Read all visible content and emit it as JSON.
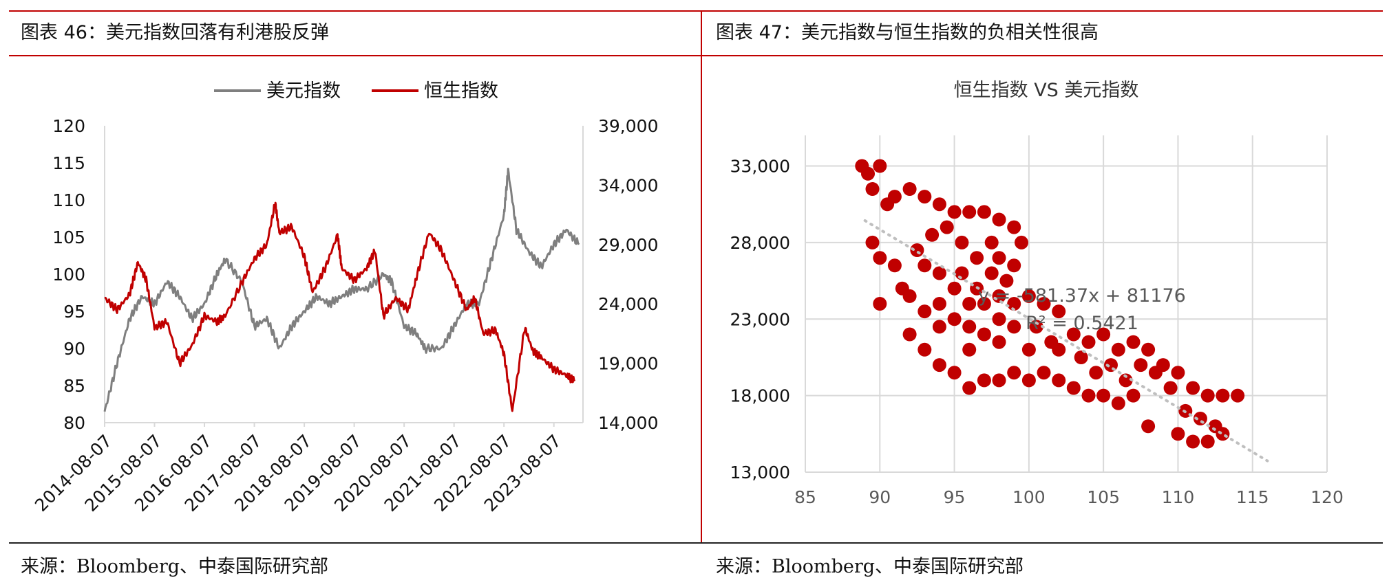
{
  "panels": {
    "left": {
      "title": "图表 46：美元指数回落有利港股反弹",
      "source": "来源：Bloomberg、中泰国际研究部"
    },
    "right": {
      "title": "图表 47：美元指数与恒生指数的负相关性很高",
      "source": "来源：Bloomberg、中泰国际研究部"
    }
  },
  "colors": {
    "usd": "#7f7f7f",
    "hsi": "#c00000",
    "rule_red": "#c00000",
    "trend": "#bfbfbf"
  },
  "chart_data": [
    {
      "type": "line",
      "legend_position": "top",
      "grid": false,
      "series": [
        {
          "name": "美元指数",
          "axis": "left",
          "x": [
            "2014-08",
            "2014-11",
            "2015-02",
            "2015-05",
            "2015-08",
            "2015-11",
            "2016-02",
            "2016-05",
            "2016-08",
            "2016-11",
            "2017-01",
            "2017-05",
            "2017-08",
            "2017-11",
            "2018-02",
            "2018-05",
            "2018-08",
            "2018-11",
            "2019-02",
            "2019-05",
            "2019-08",
            "2019-11",
            "2020-03",
            "2020-05",
            "2020-08",
            "2020-11",
            "2021-01",
            "2021-05",
            "2021-08",
            "2021-11",
            "2022-02",
            "2022-05",
            "2022-08",
            "2022-09",
            "2022-11",
            "2023-02",
            "2023-05",
            "2023-08",
            "2023-11",
            "2024-02"
          ],
          "values": [
            81.5,
            88,
            94,
            97,
            96,
            99,
            97,
            94,
            96,
            100,
            102,
            99,
            93,
            94,
            90,
            93,
            95,
            97,
            96,
            97,
            98,
            98,
            100,
            99,
            93,
            92,
            90,
            90,
            93,
            96,
            96,
            102,
            108,
            114,
            106,
            103,
            101,
            104,
            106,
            104
          ]
        },
        {
          "name": "恒生指数",
          "axis": "right",
          "x": [
            "2014-08",
            "2014-11",
            "2015-02",
            "2015-04",
            "2015-06",
            "2015-08",
            "2015-11",
            "2016-02",
            "2016-05",
            "2016-08",
            "2016-11",
            "2017-01",
            "2017-05",
            "2017-08",
            "2017-11",
            "2018-01",
            "2018-02",
            "2018-05",
            "2018-08",
            "2018-10",
            "2019-01",
            "2019-04",
            "2019-05",
            "2019-08",
            "2019-11",
            "2020-01",
            "2020-03",
            "2020-06",
            "2020-09",
            "2020-11",
            "2021-02",
            "2021-05",
            "2021-08",
            "2021-11",
            "2022-01",
            "2022-03",
            "2022-06",
            "2022-08",
            "2022-10",
            "2023-01",
            "2023-03",
            "2023-05",
            "2023-08",
            "2023-11",
            "2024-01"
          ],
          "values": [
            24500,
            23500,
            24800,
            27500,
            26000,
            22000,
            22500,
            19000,
            20500,
            23000,
            22500,
            23000,
            25800,
            27800,
            29000,
            32500,
            30000,
            30500,
            28000,
            25000,
            27000,
            29800,
            27000,
            26000,
            27000,
            28500,
            23000,
            24500,
            23500,
            26300,
            30000,
            28500,
            26000,
            23500,
            24500,
            21500,
            21800,
            19800,
            15000,
            22000,
            20000,
            19500,
            18500,
            18000,
            17500
          ]
        }
      ],
      "xticks": [
        "2014-08-07",
        "2015-08-07",
        "2016-08-07",
        "2017-08-07",
        "2018-08-07",
        "2019-08-07",
        "2020-08-07",
        "2021-08-07",
        "2022-08-07",
        "2023-08-07"
      ],
      "yticks_left": [
        "80",
        "85",
        "90",
        "95",
        "100",
        "105",
        "110",
        "115",
        "120"
      ],
      "yticks_right": [
        "14,000",
        "19,000",
        "24,000",
        "29,000",
        "34,000",
        "39,000"
      ],
      "ylim_left": [
        80,
        120
      ],
      "ylim_right": [
        14000,
        39000
      ]
    },
    {
      "type": "scatter",
      "title": "恒生指数 VS 美元指数",
      "grid": true,
      "xlim": [
        85,
        120
      ],
      "ylim": [
        13000,
        35000
      ],
      "xticks": [
        "85",
        "90",
        "95",
        "100",
        "105",
        "110",
        "115",
        "120"
      ],
      "yticks": [
        "13,000",
        "18,000",
        "23,000",
        "28,000",
        "33,000"
      ],
      "trendline": {
        "slope": -581.37,
        "intercept": 81176,
        "x_range": [
          89,
          116
        ]
      },
      "annotations": [
        "y = -581.37x + 81176",
        "R² = 0.5421"
      ],
      "points": [
        [
          88.8,
          33000
        ],
        [
          89.2,
          32500
        ],
        [
          90,
          33000
        ],
        [
          89.5,
          31500
        ],
        [
          90.5,
          30500
        ],
        [
          91,
          31000
        ],
        [
          92,
          31500
        ],
        [
          93,
          31000
        ],
        [
          94,
          30500
        ],
        [
          95,
          30000
        ],
        [
          96,
          30000
        ],
        [
          97,
          30000
        ],
        [
          98,
          29500
        ],
        [
          99,
          29000
        ],
        [
          99.5,
          28000
        ],
        [
          89.5,
          28000
        ],
        [
          90,
          27000
        ],
        [
          91,
          26500
        ],
        [
          90,
          24000
        ],
        [
          91.5,
          25000
        ],
        [
          92,
          24500
        ],
        [
          93,
          23500
        ],
        [
          94,
          24000
        ],
        [
          95,
          23000
        ],
        [
          96,
          22500
        ],
        [
          97,
          22000
        ],
        [
          98,
          23000
        ],
        [
          99,
          24000
        ],
        [
          100,
          24500
        ],
        [
          101,
          24000
        ],
        [
          102,
          23500
        ],
        [
          103,
          22000
        ],
        [
          104,
          21500
        ],
        [
          105,
          22000
        ],
        [
          106,
          21000
        ],
        [
          107,
          21500
        ],
        [
          108,
          21000
        ],
        [
          109,
          20000
        ],
        [
          110,
          19500
        ],
        [
          111,
          18500
        ],
        [
          112,
          18000
        ],
        [
          113,
          18000
        ],
        [
          114,
          18000
        ],
        [
          110.5,
          17000
        ],
        [
          111.5,
          16500
        ],
        [
          112.5,
          16000
        ],
        [
          113,
          15500
        ],
        [
          111,
          15000
        ],
        [
          112,
          15000
        ],
        [
          110,
          15500
        ],
        [
          108,
          16000
        ],
        [
          93,
          21000
        ],
        [
          94,
          20000
        ],
        [
          95,
          19500
        ],
        [
          96,
          18500
        ],
        [
          97,
          19000
        ],
        [
          98,
          19000
        ],
        [
          99,
          19500
        ],
        [
          100,
          19000
        ],
        [
          101,
          19500
        ],
        [
          102,
          19000
        ],
        [
          103,
          18500
        ],
        [
          104,
          18000
        ],
        [
          105,
          18000
        ],
        [
          106,
          17500
        ],
        [
          107,
          18000
        ],
        [
          95.5,
          26000
        ],
        [
          96.5,
          25000
        ],
        [
          97.5,
          26000
        ],
        [
          98.5,
          25500
        ],
        [
          92.5,
          27500
        ],
        [
          93.5,
          28500
        ],
        [
          94.5,
          29000
        ],
        [
          95.5,
          28000
        ],
        [
          96.5,
          27000
        ],
        [
          97.5,
          28000
        ],
        [
          98,
          27000
        ],
        [
          99,
          26500
        ],
        [
          100.5,
          22500
        ],
        [
          101.5,
          21500
        ],
        [
          103.5,
          20500
        ],
        [
          104.5,
          19500
        ],
        [
          105.5,
          20000
        ],
        [
          106.5,
          19000
        ],
        [
          107.5,
          20000
        ],
        [
          108.5,
          19500
        ],
        [
          109.5,
          18500
        ],
        [
          94,
          26000
        ],
        [
          95,
          25000
        ],
        [
          96,
          24000
        ],
        [
          97,
          24000
        ],
        [
          98,
          24500
        ],
        [
          93,
          26500
        ],
        [
          92,
          22000
        ],
        [
          94,
          22500
        ],
        [
          96,
          21000
        ],
        [
          98,
          21500
        ],
        [
          100,
          21000
        ],
        [
          102,
          21000
        ],
        [
          99,
          22500
        ]
      ]
    }
  ]
}
